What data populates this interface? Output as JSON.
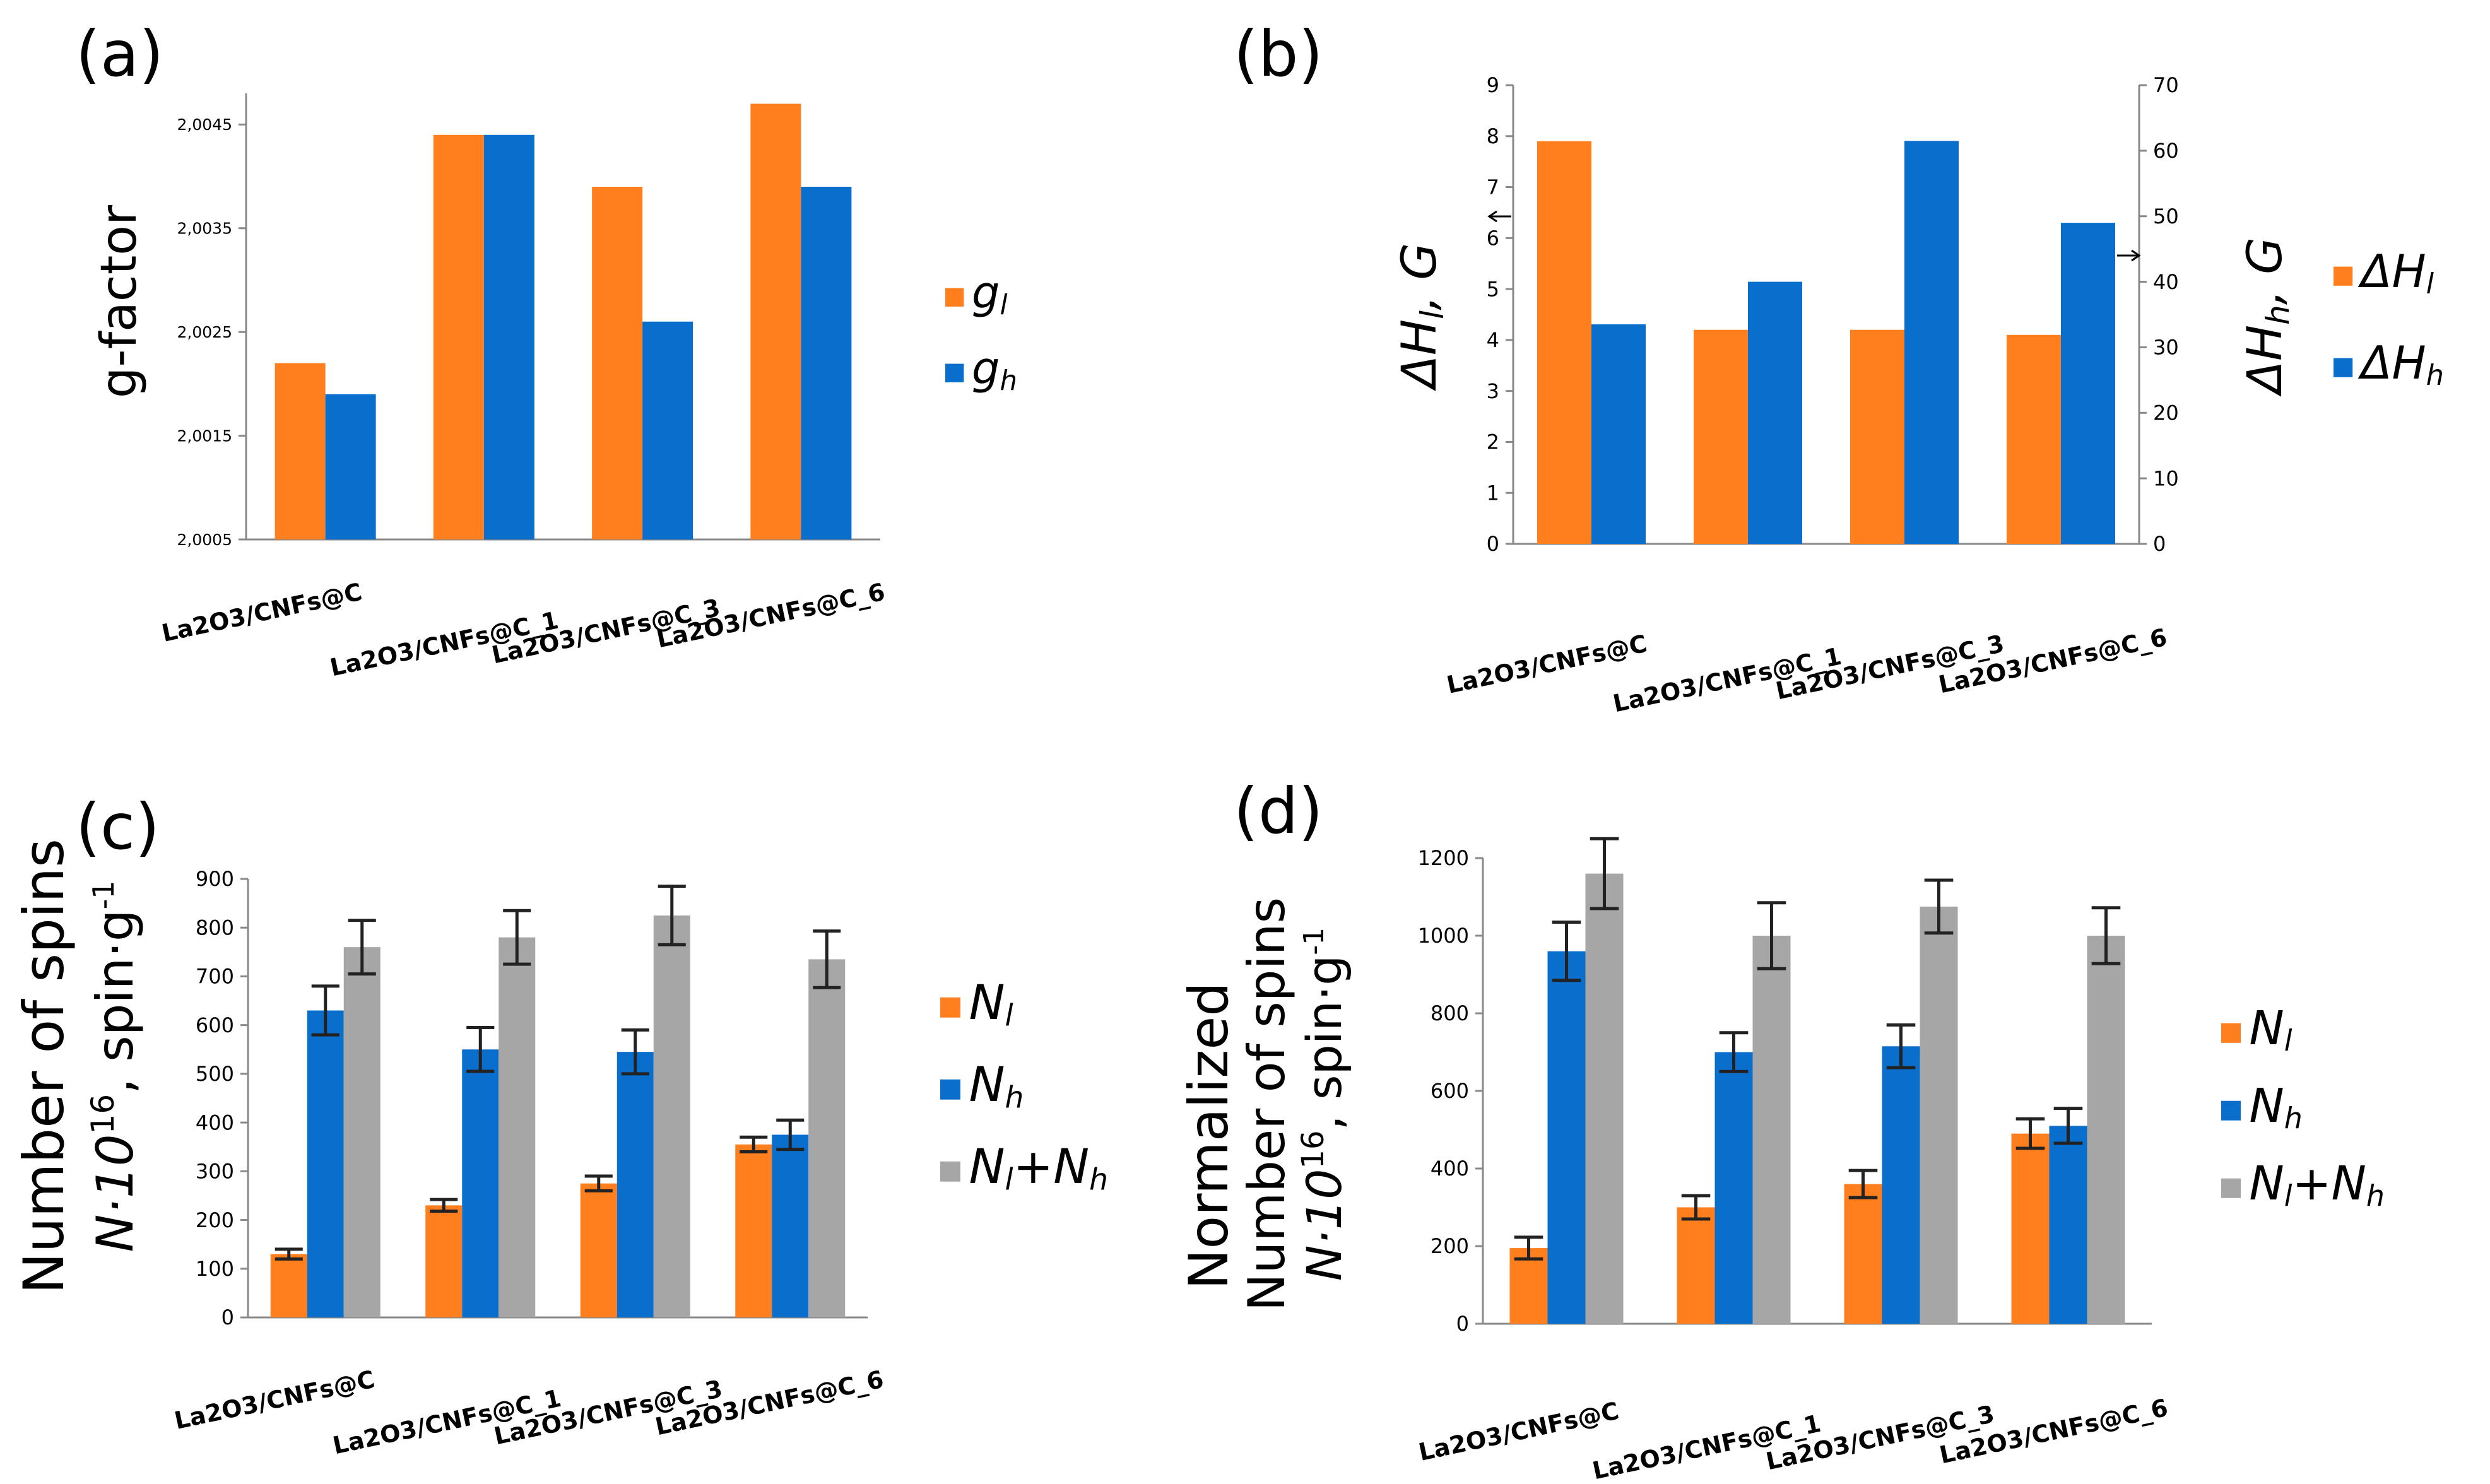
{
  "colors": {
    "orange": "#FF7F1E",
    "blue": "#0A6FCC",
    "gray": "#A6A6A6"
  },
  "chart_data": [
    {
      "id": "a",
      "type": "bar",
      "panel_label": "(a)",
      "ylabel": "g-factor",
      "categories": [
        "La2O3/CNFs@C",
        "La2O3/CNFs@C_1",
        "La2O3/CNFs@C_3",
        "La2O3/CNFs@C_6"
      ],
      "ylim": [
        2.0005,
        2.0048
      ],
      "yticks": [
        2.0005,
        2.0015,
        2.0025,
        2.0035,
        2.0045
      ],
      "ytick_labels": [
        "2,0005",
        "2,0015",
        "2,0025",
        "2,0035",
        "2,0045"
      ],
      "series": [
        {
          "name": "gl",
          "legend_main": "g",
          "legend_sub": "l",
          "color": "#FF7F1E",
          "values": [
            2.0022,
            2.0044,
            2.0039,
            2.0047
          ]
        },
        {
          "name": "gh",
          "legend_main": "g",
          "legend_sub": "h",
          "color": "#0A6FCC",
          "values": [
            2.0019,
            2.0044,
            2.0026,
            2.0039
          ]
        }
      ]
    },
    {
      "id": "b",
      "type": "bar",
      "panel_label": "(b)",
      "ylabel_left": "ΔHl, G",
      "ylabel_right": "ΔHh, G",
      "categories": [
        "La2O3/CNFs@C",
        "La2O3/CNFs@C_1",
        "La2O3/CNFs@C_3",
        "La2O3/CNFs@C_6"
      ],
      "ylim_left": [
        0,
        9
      ],
      "yticks_left": [
        0,
        1,
        2,
        3,
        4,
        5,
        6,
        7,
        8,
        9
      ],
      "ylim_right": [
        0,
        70
      ],
      "yticks_right": [
        0,
        10,
        20,
        30,
        40,
        50,
        60,
        70
      ],
      "series": [
        {
          "name": "ΔHl",
          "legend_main": "ΔH",
          "legend_sub": "l",
          "axis": "left",
          "color": "#FF7F1E",
          "values": [
            7.9,
            4.2,
            4.2,
            4.1
          ]
        },
        {
          "name": "ΔHh",
          "legend_main": "ΔH",
          "legend_sub": "h",
          "axis": "right",
          "color": "#0A6FCC",
          "values": [
            33.5,
            40,
            61.5,
            49
          ]
        }
      ]
    },
    {
      "id": "c",
      "type": "bar",
      "panel_label": "(c)",
      "ylabel_line1": "Number of spins",
      "ylabel_line2": "N·10",
      "ylabel_line2_sup": "16",
      "ylabel_line2_end": ", spin·g",
      "ylabel_line2_end_sup": "-1",
      "categories": [
        "La2O3/CNFs@C",
        "La2O3/CNFs@C_1",
        "La2O3/CNFs@C_3",
        "La2O3/CNFs@C_6"
      ],
      "ylim": [
        0,
        900
      ],
      "yticks": [
        0,
        100,
        200,
        300,
        400,
        500,
        600,
        700,
        800,
        900
      ],
      "series": [
        {
          "name": "Nl",
          "legend_main": "N",
          "legend_sub": "l",
          "legend_extra": "",
          "color": "#FF7F1E",
          "values": [
            130,
            230,
            275,
            355
          ],
          "errors": [
            10,
            12,
            15,
            15
          ]
        },
        {
          "name": "Nh",
          "legend_main": "N",
          "legend_sub": "h",
          "legend_extra": "",
          "color": "#0A6FCC",
          "values": [
            630,
            550,
            545,
            375
          ],
          "errors": [
            50,
            45,
            45,
            30
          ]
        },
        {
          "name": "Nl+Nh",
          "legend_main": "N",
          "legend_sub": "l",
          "legend_extra": "+N",
          "legend_extra_sub": "h",
          "color": "#A6A6A6",
          "values": [
            760,
            780,
            825,
            735
          ],
          "errors": [
            55,
            55,
            60,
            58
          ]
        }
      ]
    },
    {
      "id": "d",
      "type": "bar",
      "panel_label": "(d)",
      "ylabel_line1": "Normalized",
      "ylabel_line2": "Number of spins",
      "ylabel_line3": "N·10",
      "ylabel_line3_sup": "16",
      "ylabel_line3_end": ", spin·g",
      "ylabel_line3_end_sup": "-1",
      "categories": [
        "La2O3/CNFs@C",
        "La2O3/CNFs@C_1",
        "La2O3/CNFs@C_3",
        "La2O3/CNFs@C_6"
      ],
      "ylim": [
        0,
        1200
      ],
      "yticks": [
        0,
        200,
        400,
        600,
        800,
        1000,
        1200
      ],
      "series": [
        {
          "name": "Nl",
          "legend_main": "N",
          "legend_sub": "l",
          "legend_extra": "",
          "color": "#FF7F1E",
          "values": [
            195,
            300,
            360,
            490
          ],
          "errors": [
            28,
            30,
            35,
            38
          ]
        },
        {
          "name": "Nh",
          "legend_main": "N",
          "legend_sub": "h",
          "legend_extra": "",
          "color": "#0A6FCC",
          "values": [
            960,
            700,
            715,
            510
          ],
          "errors": [
            75,
            50,
            55,
            45
          ]
        },
        {
          "name": "Nl+Nh",
          "legend_main": "N",
          "legend_sub": "l",
          "legend_extra": "+N",
          "legend_extra_sub": "h",
          "color": "#A6A6A6",
          "values": [
            1160,
            1000,
            1075,
            1000
          ],
          "errors": [
            90,
            85,
            68,
            72
          ]
        }
      ]
    }
  ]
}
